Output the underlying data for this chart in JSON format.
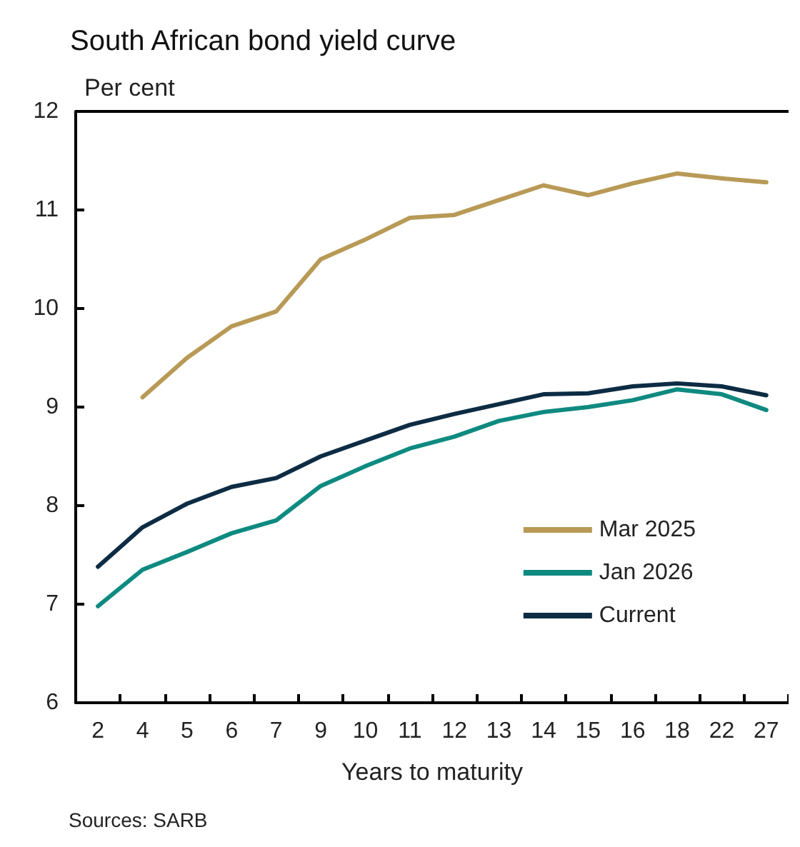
{
  "chart_data": {
    "type": "line",
    "title": "South African bond yield curve",
    "ylabel": "Per cent",
    "xlabel": "Years to maturity",
    "annotations": [
      "Sources: SARB"
    ],
    "categories": [
      "2",
      "4",
      "5",
      "6",
      "7",
      "9",
      "10",
      "11",
      "12",
      "13",
      "14",
      "15",
      "16",
      "18",
      "22",
      "27"
    ],
    "ylim": [
      6,
      12
    ],
    "yticks": [
      6,
      7,
      8,
      9,
      10,
      11,
      12
    ],
    "grid": false,
    "legend": "right",
    "marker": "none",
    "line_style": "solid",
    "series": [
      {
        "name": "Mar 2025",
        "color": "#b89a56",
        "values": [
          null,
          9.1,
          9.5,
          9.82,
          9.97,
          10.5,
          10.7,
          10.92,
          10.95,
          11.1,
          11.25,
          11.15,
          11.27,
          11.37,
          11.32,
          11.28
        ]
      },
      {
        "name": "Jan 2026",
        "color": "#0e8a80",
        "values": [
          6.98,
          7.35,
          7.53,
          7.72,
          7.85,
          8.2,
          8.4,
          8.58,
          8.7,
          8.86,
          8.95,
          9.0,
          9.07,
          9.18,
          9.13,
          8.97
        ]
      },
      {
        "name": "Current",
        "color": "#0d2c44",
        "values": [
          7.38,
          7.78,
          8.02,
          8.19,
          8.28,
          8.5,
          8.66,
          8.82,
          8.93,
          9.03,
          9.13,
          9.14,
          9.21,
          9.24,
          9.21,
          9.12
        ]
      }
    ]
  }
}
